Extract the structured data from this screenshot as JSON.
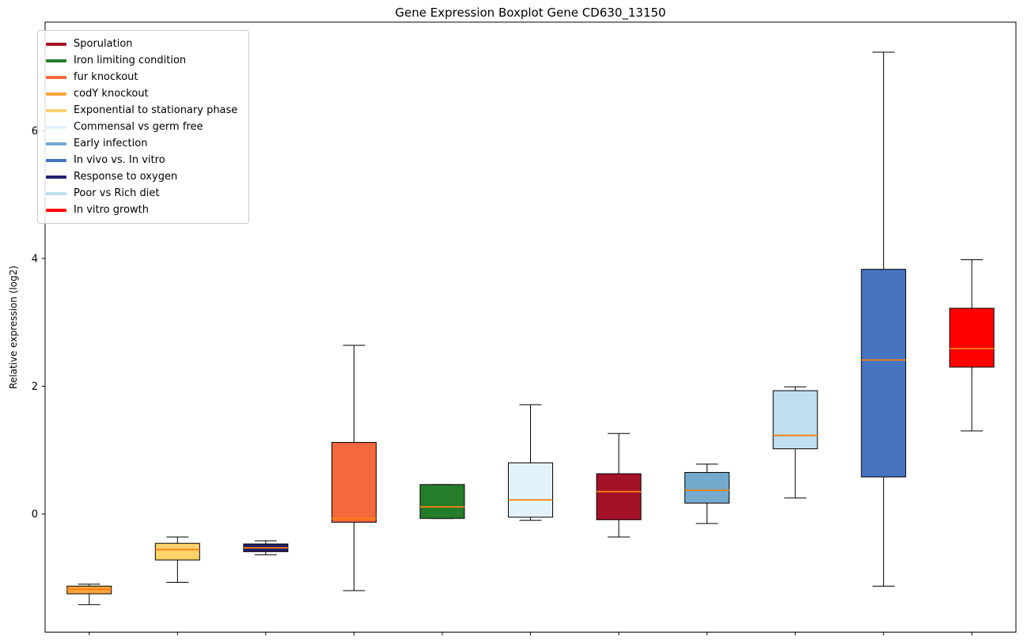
{
  "figure": {
    "title": "Gene Expression Boxplot Gene CD630_13150",
    "ylabel": "Relative expression (log2)"
  },
  "chart_data": {
    "type": "boxplot",
    "title": "Gene Expression Boxplot Gene CD630_13150",
    "xlabel": "",
    "ylabel": "Relative expression (log2)",
    "ylim": [
      -1.85,
      7.7
    ],
    "yticks": [
      0,
      2,
      4,
      6
    ],
    "grid": false,
    "legend_position": "upper-left",
    "colors": {
      "median": "#ff7f0e",
      "whisker": "#000000",
      "box_edge": "#000000",
      "background": "#ffffff"
    },
    "legend": [
      {
        "label": "Sporulation",
        "color": "#a31227"
      },
      {
        "label": "Iron limiting condition",
        "color": "#257c2b"
      },
      {
        "label": "fur knockout",
        "color": "#f4683e"
      },
      {
        "label": "codY knockout",
        "color": "#ffa43d"
      },
      {
        "label": "Exponential to stationary phase",
        "color": "#ffd26a"
      },
      {
        "label": "Commensal vs germ free",
        "color": "#e3f3fb"
      },
      {
        "label": "Early infection",
        "color": "#74aacd"
      },
      {
        "label": "In vivo vs. In vitro",
        "color": "#4674c1"
      },
      {
        "label": "Response to oxygen",
        "color": "#221f6e"
      },
      {
        "label": "Poor vs Rich diet",
        "color": "#c0def0"
      },
      {
        "label": "In vitro growth",
        "color": "#ff0000"
      }
    ],
    "series": [
      {
        "name": "codY knockout",
        "color": "#ffa43d",
        "whislo": -1.42,
        "q1": -1.25,
        "med": -1.18,
        "q3": -1.13,
        "whishi": -1.1
      },
      {
        "name": "Exponential to stationary phase",
        "color": "#ffd26a",
        "whislo": -1.07,
        "q1": -0.72,
        "med": -0.56,
        "q3": -0.46,
        "whishi": -0.36
      },
      {
        "name": "Response to oxygen",
        "color": "#221f6e",
        "whislo": -0.64,
        "q1": -0.59,
        "med": -0.53,
        "q3": -0.47,
        "whishi": -0.42
      },
      {
        "name": "fur knockout",
        "color": "#f4683e",
        "whislo": -1.2,
        "q1": -0.13,
        "med": -0.07,
        "q3": 1.12,
        "whishi": 2.64
      },
      {
        "name": "Iron limiting condition",
        "color": "#257c2b",
        "whislo": -0.07,
        "q1": -0.07,
        "med": 0.11,
        "q3": 0.46,
        "whishi": 0.46
      },
      {
        "name": "Commensal vs germ free",
        "color": "#e3f3fb",
        "whislo": -0.1,
        "q1": -0.05,
        "med": 0.22,
        "q3": 0.8,
        "whishi": 1.71
      },
      {
        "name": "Sporulation",
        "color": "#a31227",
        "whislo": -0.36,
        "q1": -0.09,
        "med": 0.35,
        "q3": 0.63,
        "whishi": 1.26
      },
      {
        "name": "Early infection",
        "color": "#74aacd",
        "whislo": -0.15,
        "q1": 0.17,
        "med": 0.37,
        "q3": 0.65,
        "whishi": 0.78
      },
      {
        "name": "Poor vs Rich diet",
        "color": "#c0def0",
        "whislo": 0.25,
        "q1": 1.02,
        "med": 1.23,
        "q3": 1.93,
        "whishi": 1.99
      },
      {
        "name": "In vivo vs. In vitro",
        "color": "#4674c1",
        "whislo": -1.13,
        "q1": 0.58,
        "med": 2.41,
        "q3": 3.83,
        "whishi": 7.23
      },
      {
        "name": "In vitro growth",
        "color": "#ff0000",
        "whislo": 1.3,
        "q1": 2.3,
        "med": 2.59,
        "q3": 3.22,
        "whishi": 3.98
      }
    ]
  }
}
